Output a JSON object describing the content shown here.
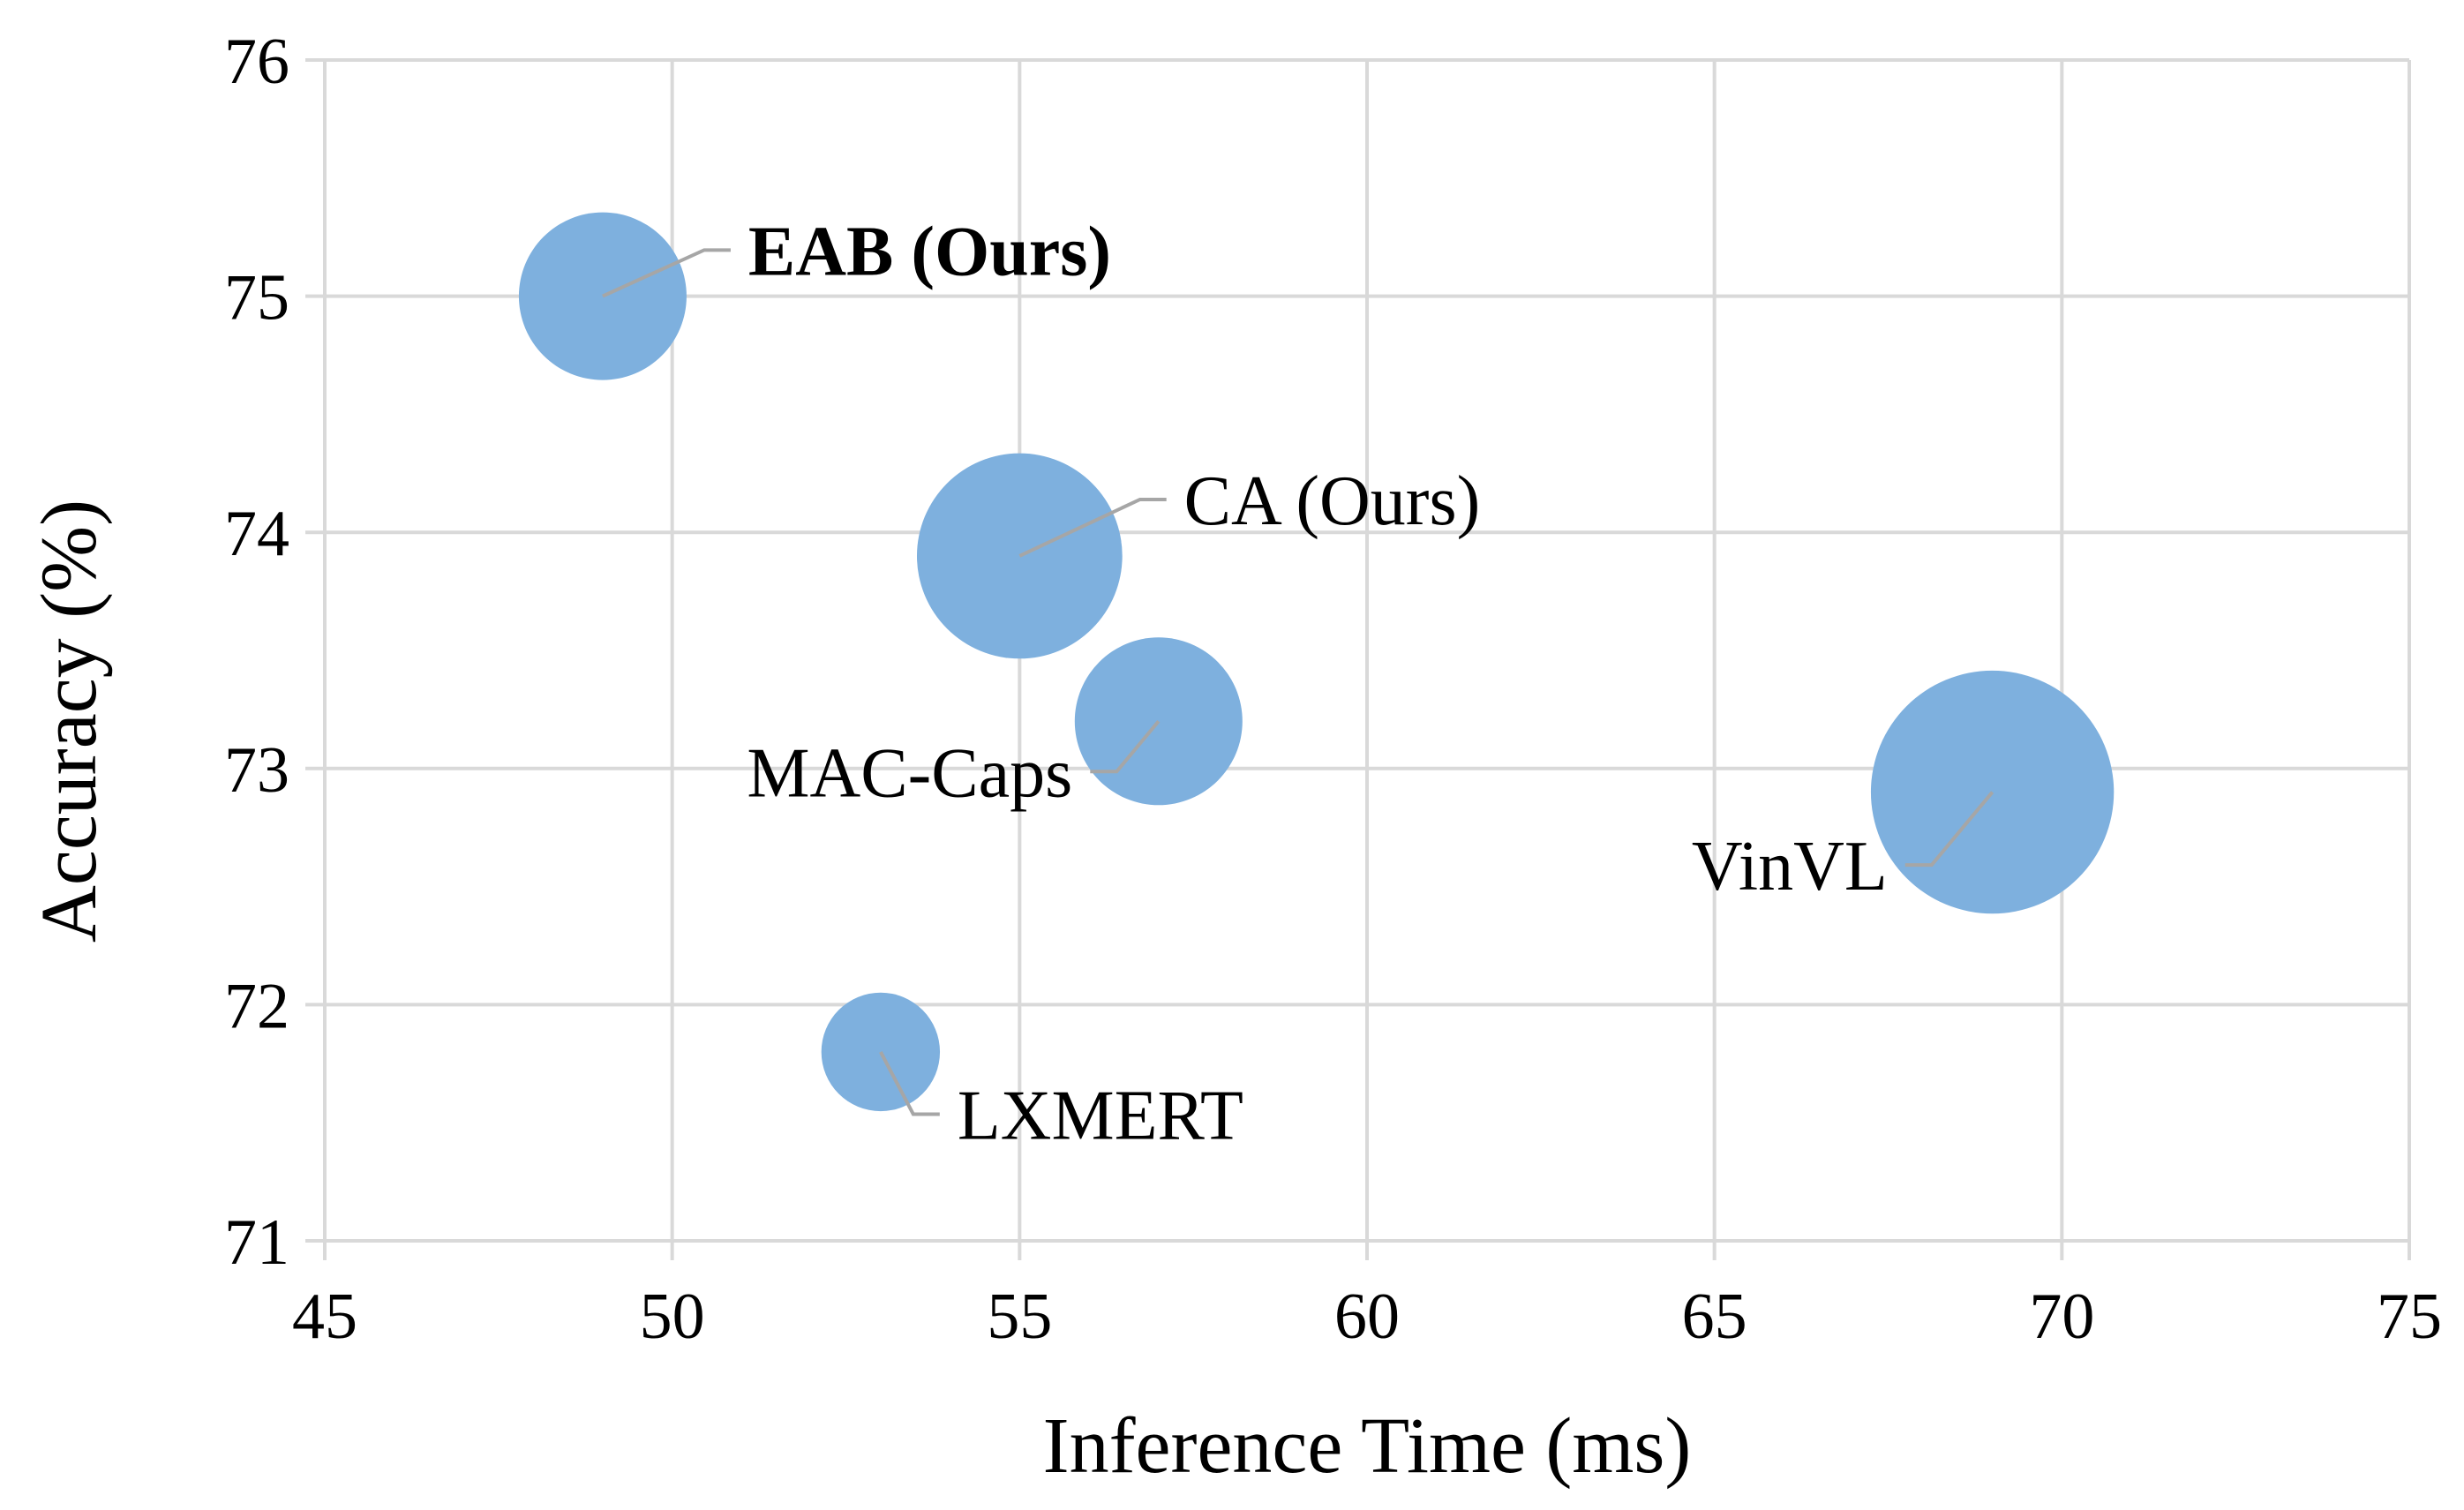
{
  "chart_data": {
    "type": "scatter",
    "subtype": "bubble",
    "title": "",
    "xlabel": "Inference Time (ms)",
    "ylabel": "Accuracy (%)",
    "xlim": [
      45,
      75
    ],
    "ylim": [
      71,
      76
    ],
    "xticks": [
      45,
      50,
      55,
      60,
      65,
      70,
      75
    ],
    "yticks": [
      71,
      72,
      73,
      74,
      75,
      76
    ],
    "grid": true,
    "legend": "none",
    "bubble_color": "#7EB0DE",
    "gridline_color": "#D9D9D9",
    "leader_line_color": "#A6A6A6",
    "points": [
      {
        "label": "EAB (Ours)",
        "x": 49,
        "y": 75.0,
        "size": 1.0,
        "bold": true,
        "label_side": "upper-right"
      },
      {
        "label": "CA (Ours)",
        "x": 55,
        "y": 73.9,
        "size": 1.5,
        "bold": false,
        "label_side": "upper-right"
      },
      {
        "label": "MAC-Caps",
        "x": 57,
        "y": 73.2,
        "size": 1.0,
        "bold": false,
        "label_side": "lower-left"
      },
      {
        "label": "VinVL",
        "x": 69,
        "y": 72.9,
        "size": 2.1,
        "bold": false,
        "label_side": "lower-left"
      },
      {
        "label": "LXMERT",
        "x": 53,
        "y": 71.8,
        "size": 0.5,
        "bold": false,
        "label_side": "lower-right"
      }
    ]
  }
}
